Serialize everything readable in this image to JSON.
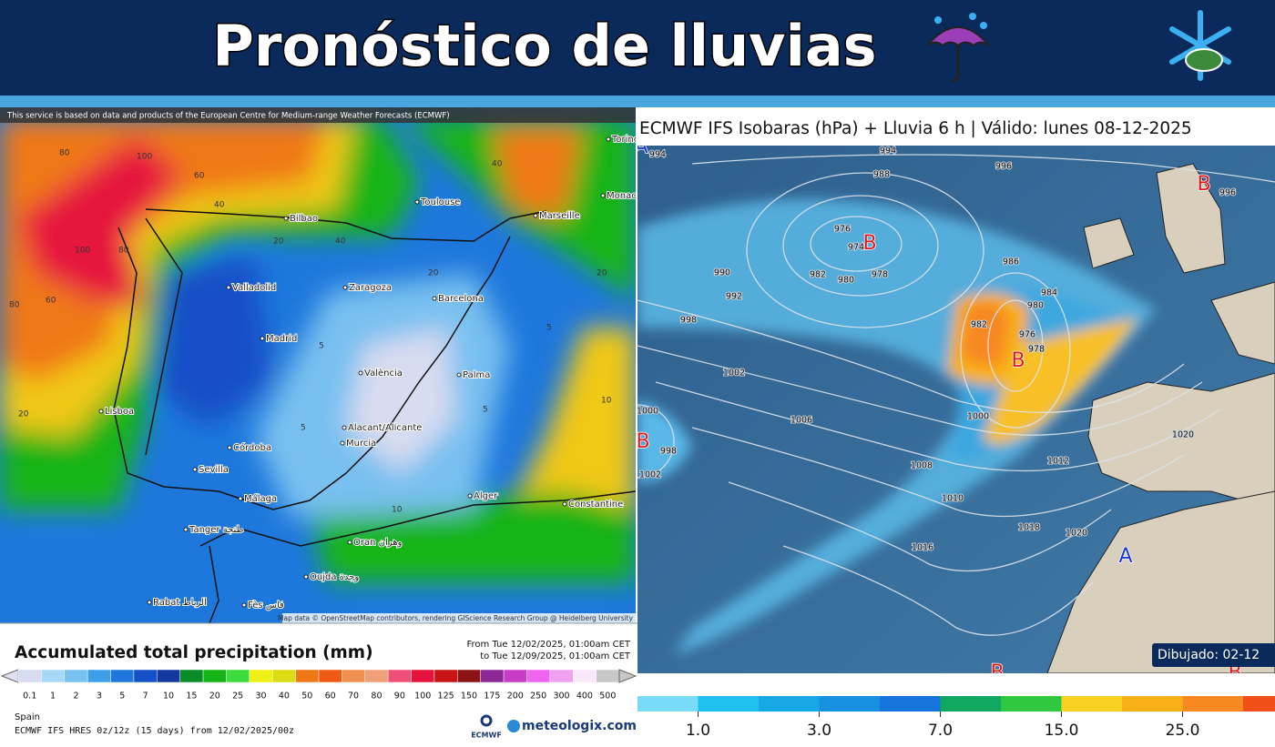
{
  "header": {
    "title": "Pronóstico de lluvias"
  },
  "left_map": {
    "notice": "This service is based on data and products of the European Centre for Medium-range Weather Forecasts (ECMWF)",
    "cities": [
      "Torino",
      "Monaco",
      "Marseille",
      "Toulouse",
      "Bilbao",
      "Valladolid",
      "Zaragoza",
      "Barcelona",
      "Madrid",
      "València",
      "Palma",
      "Lisboa",
      "Alacant/Alicante",
      "Murcia",
      "Córdoba",
      "Sevilla",
      "Málaga",
      "Alger",
      "Constantine",
      "Tanger طنجة",
      "Oran وهران",
      "Oujda وجدة",
      "Rabat الرباط",
      "Fès فاس"
    ],
    "contour_labels": [
      80,
      100,
      60,
      80,
      40,
      20,
      60,
      100,
      80,
      40,
      20,
      5,
      10,
      5,
      20,
      40,
      5,
      10,
      20,
      5
    ],
    "attribution": "Map data © OpenStreetMap contributors, rendering GIScience Research Group @ Heidelberg University",
    "legend": {
      "title": "Accumulated total precipitation (mm)",
      "valid_from": "From Tue 12/02/2025, 01:00am CET",
      "valid_to": "to Tue 12/09/2025, 01:00am CET",
      "labels": [
        "0.1",
        "1",
        "2",
        "3",
        "5",
        "7",
        "10",
        "15",
        "20",
        "25",
        "30",
        "40",
        "50",
        "60",
        "70",
        "80",
        "90",
        "100",
        "125",
        "150",
        "175",
        "200",
        "250",
        "300",
        "400",
        "500"
      ],
      "colors": [
        "#d8dcf0",
        "#a8d8f8",
        "#78c0f0",
        "#3ca0e8",
        "#1e78dc",
        "#1450c8",
        "#1438a0",
        "#0a8c28",
        "#14b414",
        "#3cdc3c",
        "#f0f014",
        "#dcdc14",
        "#f07814",
        "#f05a14",
        "#f09050",
        "#f0a078",
        "#f05078",
        "#e6143c",
        "#c81414",
        "#8c1414",
        "#8c2896",
        "#c83cc8",
        "#f064f0",
        "#f0a0f0",
        "#f8e8f8",
        "#c8c8c8"
      ]
    },
    "region": "Spain",
    "model": "ECMWF IFS HRES 0z/12z (15 days) from 12/02/2025/00z",
    "logo_ecmwf": "ECMWF",
    "logo_meteologix": "meteologix.com"
  },
  "right_map": {
    "title": "ECMWF IFS Isobaras (hPa) + Lluvia 6 h | Válido: lunes 08-12-2025",
    "centers": [
      "A",
      "B",
      "B",
      "B",
      "B",
      "A",
      "B",
      "B"
    ],
    "isobar_labels": [
      994,
      994,
      988,
      996,
      996,
      976,
      974,
      982,
      980,
      978,
      990,
      992,
      998,
      986,
      984,
      980,
      982,
      976,
      978,
      1002,
      1006,
      1000,
      1000,
      998,
      1002,
      1008,
      1010,
      1012,
      1016,
      1018,
      1020,
      1020
    ],
    "drawn": "Dibujado: 02-12",
    "colorbar": {
      "colors": [
        "#78dcf8",
        "#20c0f0",
        "#18a8e8",
        "#1890e0",
        "#1474dc",
        "#10a860",
        "#30c840",
        "#f8d020",
        "#f8b018",
        "#f88820",
        "#f05018"
      ],
      "labels": [
        "1.0",
        "3.0",
        "7.0",
        "15.0",
        "25.0"
      ]
    }
  }
}
